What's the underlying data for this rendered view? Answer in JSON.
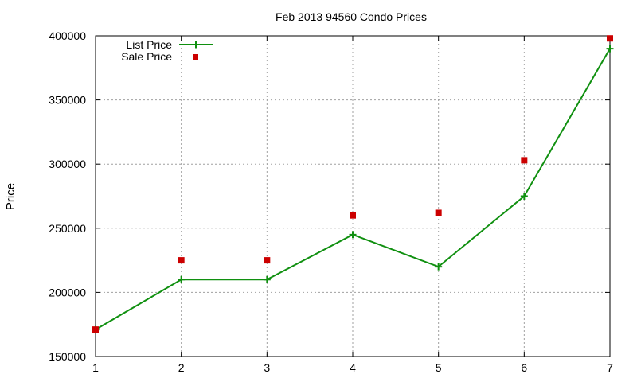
{
  "chart_data": {
    "type": "line",
    "title": "Feb 2013 94560 Condo Prices",
    "xlabel": "",
    "ylabel": "Price",
    "x": [
      1,
      2,
      3,
      4,
      5,
      6,
      7
    ],
    "xlim": [
      1,
      7
    ],
    "ylim": [
      150000,
      400000
    ],
    "x_ticks": [
      "1",
      "2",
      "3",
      "4",
      "5",
      "6",
      "7"
    ],
    "y_ticks": [
      "150000",
      "200000",
      "250000",
      "300000",
      "350000",
      "400000"
    ],
    "grid": true,
    "legend_position": "top-left",
    "series": [
      {
        "name": "List Price",
        "style": "line-with-plus-markers",
        "color": "#109010",
        "values": [
          171000,
          210000,
          210000,
          245000,
          220000,
          275000,
          390000
        ]
      },
      {
        "name": "Sale Price",
        "style": "square-markers",
        "color": "#cc0000",
        "values": [
          171000,
          225000,
          225000,
          260000,
          262000,
          303000,
          398000
        ]
      }
    ]
  }
}
